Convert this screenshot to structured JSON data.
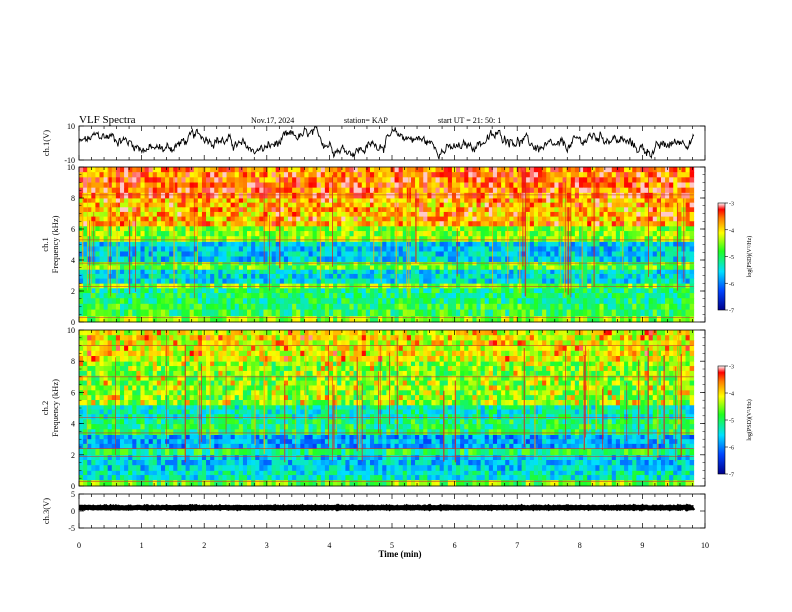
{
  "header": {
    "title": "VLF Spectra",
    "date": "Nov.17, 2024",
    "station": "station= KAP",
    "start_time": "start  UT  =   21: 50: 1"
  },
  "chart_data": [
    {
      "id": "waveform-ch1",
      "type": "line",
      "ylabel": "ch.1(V)",
      "ylim": [
        -10,
        10
      ],
      "yticks": [
        {
          "value": 10,
          "label": "10"
        },
        {
          "value": -10,
          "label": "-10"
        }
      ],
      "xlim": [
        0,
        10
      ],
      "x_data_range": [
        0,
        9.82
      ],
      "description_values": "noisy waveform mostly between -5 and 5 V"
    },
    {
      "id": "spectrogram-ch1",
      "type": "heatmap",
      "ylabel": "ch.1\nFrequency (kHz)",
      "ylim": [
        0,
        10
      ],
      "yticks": [
        "0",
        "2",
        "4",
        "6",
        "8",
        "10"
      ],
      "xlim": [
        0,
        10
      ],
      "x_data_range": [
        0,
        9.82
      ],
      "colorbar": {
        "label": "log(PSD)(V²/Hz)",
        "range": [
          -7,
          -3
        ],
        "ticks": [
          "-3",
          "-4",
          "-5",
          "-6",
          "-7"
        ]
      },
      "bands": [
        {
          "from": 0.0,
          "to": 0.4,
          "level": -4.5
        },
        {
          "from": 0.4,
          "to": 1.2,
          "level": -4.9
        },
        {
          "from": 1.2,
          "to": 2.2,
          "level": -5.1
        },
        {
          "from": 2.2,
          "to": 2.5,
          "level": -4.6
        },
        {
          "from": 2.5,
          "to": 3.4,
          "level": -5.5
        },
        {
          "from": 3.4,
          "to": 3.9,
          "level": -4.7
        },
        {
          "from": 3.9,
          "to": 5.2,
          "level": -5.6
        },
        {
          "from": 5.2,
          "to": 6.2,
          "level": -4.5
        },
        {
          "from": 6.2,
          "to": 8.0,
          "level": -3.9
        },
        {
          "from": 8.0,
          "to": 10.0,
          "level": -3.6
        }
      ],
      "lines_khz": [
        0.3,
        2.3,
        3.8,
        5.3,
        8.2
      ]
    },
    {
      "id": "spectrogram-ch2",
      "type": "heatmap",
      "ylabel": "ch.2\nFrequency (kHz)",
      "ylim": [
        0,
        10
      ],
      "yticks": [
        "0",
        "2",
        "4",
        "6",
        "8",
        "10"
      ],
      "xlim": [
        0,
        10
      ],
      "x_data_range": [
        0,
        9.82
      ],
      "colorbar": {
        "label": "log(PSD)(V²/Hz)",
        "range": [
          -7,
          -3
        ],
        "ticks": [
          "-3",
          "-4",
          "-5",
          "-6",
          "-7"
        ]
      },
      "bands": [
        {
          "from": 0.0,
          "to": 0.4,
          "level": -4.6
        },
        {
          "from": 0.4,
          "to": 1.0,
          "level": -5.4
        },
        {
          "from": 1.0,
          "to": 2.0,
          "level": -5.6
        },
        {
          "from": 2.0,
          "to": 2.4,
          "level": -5.0
        },
        {
          "from": 2.4,
          "to": 3.3,
          "level": -5.8
        },
        {
          "from": 3.3,
          "to": 4.3,
          "level": -5.0
        },
        {
          "from": 4.3,
          "to": 5.2,
          "level": -5.3
        },
        {
          "from": 5.2,
          "to": 8.0,
          "level": -4.6
        },
        {
          "from": 8.0,
          "to": 10.0,
          "level": -4.2
        }
      ],
      "lines_khz": [
        0.3,
        1.9,
        2.4,
        3.4,
        4.4,
        7.0,
        9.0
      ]
    },
    {
      "id": "waveform-ch3",
      "type": "line",
      "ylabel": "ch.3(V)",
      "ylim": [
        -5,
        5
      ],
      "yticks": [
        {
          "value": 5,
          "label": "5"
        },
        {
          "value": 0,
          "label": "0"
        },
        {
          "value": -5,
          "label": "-5"
        }
      ],
      "xlim": [
        0,
        10
      ],
      "x_data_range": [
        0,
        9.82
      ],
      "description_values": "thick nearly constant trace at about 1 V"
    }
  ],
  "x_axis": {
    "label": "Time (min)",
    "ticks": [
      "0",
      "1",
      "2",
      "3",
      "4",
      "5",
      "6",
      "7",
      "8",
      "9",
      "10"
    ]
  }
}
